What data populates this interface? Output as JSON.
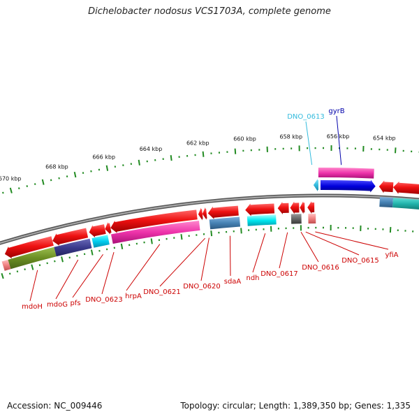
{
  "title": "Dichelobacter nodosus VCS1703A, complete genome",
  "footer": {
    "accession": "Accession: NC_009446",
    "summary": "Topology: circular; Length: 1,389,350 bp; Genes: 1,335"
  },
  "ticks": [
    "670 kbp",
    "668 kbp",
    "666 kbp",
    "664 kbp",
    "662 kbp",
    "660 kbp",
    "658 kbp",
    "656 kbp",
    "654 kbp"
  ],
  "gene_labels": {
    "top": [
      {
        "text": "DNO_0613",
        "color": "#33bbdd"
      },
      {
        "text": "gyrB",
        "color": "#0000aa"
      }
    ],
    "bottom": [
      {
        "text": "mdoH",
        "color": "#cc0000"
      },
      {
        "text": "mdoG",
        "color": "#cc0000"
      },
      {
        "text": "pfs",
        "color": "#cc0000"
      },
      {
        "text": "DNO_0623",
        "color": "#cc0000"
      },
      {
        "text": "hrpA",
        "color": "#cc0000"
      },
      {
        "text": "DNO_0621",
        "color": "#cc0000"
      },
      {
        "text": "DNO_0620",
        "color": "#cc0000"
      },
      {
        "text": "sdaA",
        "color": "#cc0000"
      },
      {
        "text": "ndh",
        "color": "#cc0000"
      },
      {
        "text": "DNO_0617",
        "color": "#cc0000"
      },
      {
        "text": "DNO_0616",
        "color": "#cc0000"
      },
      {
        "text": "DNO_0615",
        "color": "#cc0000"
      },
      {
        "text": "yfiA",
        "color": "#cc0000"
      }
    ]
  },
  "colors": {
    "backbone": "#888888",
    "gene_red": "#ee1111",
    "gene_magenta": "#ee33aa",
    "gene_blue": "#0000dd",
    "gene_cyan": "#00e8f0",
    "gene_olive": "#6b8e23",
    "gene_navy": "#3a3a8c",
    "gene_steel": "#4682b4",
    "gene_teal": "#20b2aa",
    "tick_green": "#228b22"
  }
}
